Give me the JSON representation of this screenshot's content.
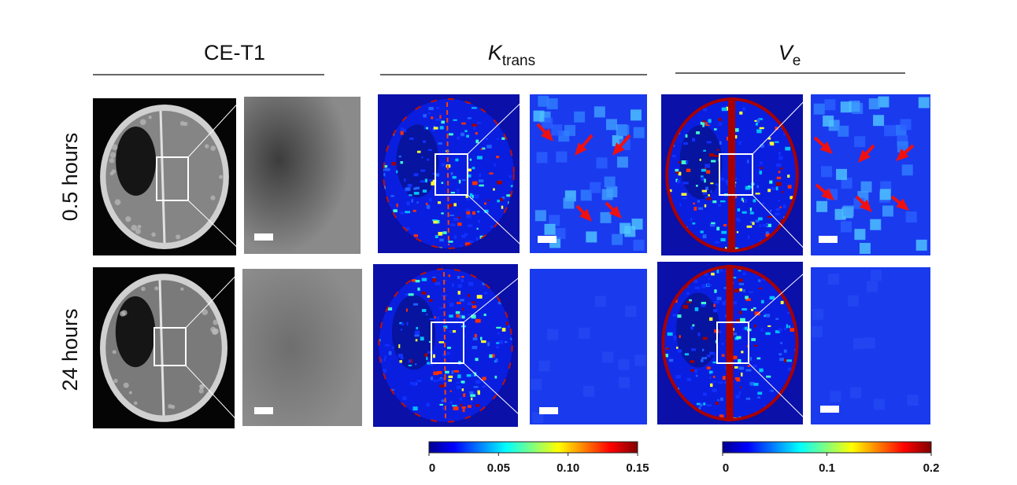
{
  "columns": [
    {
      "title": "CE-T1"
    },
    {
      "title": "K",
      "subscript": "trans"
    },
    {
      "title": "V",
      "subscript": "e"
    }
  ],
  "rows": [
    {
      "label": "0.5 hours"
    },
    {
      "label": "24 hours"
    }
  ],
  "colorbars": [
    {
      "lim": [
        0,
        0.15
      ],
      "ticks": [
        0,
        0.05,
        {
          "value": 0.1,
          "label": "0.10"
        },
        0.15
      ]
    },
    {
      "lim": [
        0,
        0.2
      ],
      "ticks": [
        0,
        0.1,
        0.2
      ]
    }
  ]
}
